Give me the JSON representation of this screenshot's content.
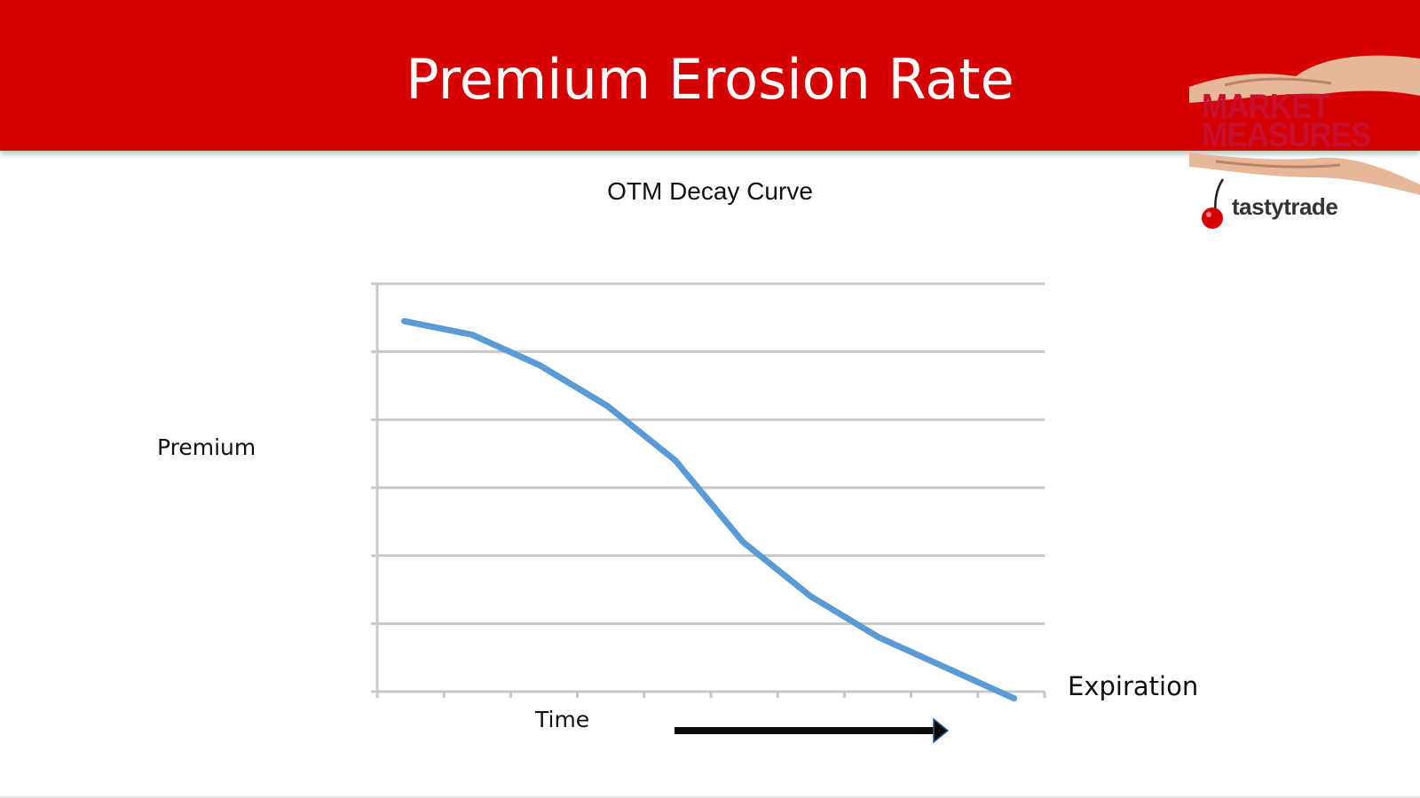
{
  "slide": {
    "title": "Premium Erosion Rate"
  },
  "logo": {
    "brand_line1": "MARKET",
    "brand_line2": "MEASURES",
    "company": "tastytrade",
    "brand_color": "#c8102e",
    "icon": "cherry-icon"
  },
  "colors": {
    "banner": "#d50000",
    "line": "#5b9bd5",
    "grid": "#c8c8c8",
    "arrow": "#0b0b0b"
  },
  "chart_data": {
    "type": "line",
    "title": "OTM Decay Curve",
    "xlabel": "Time",
    "ylabel": "Premium",
    "annotation": "Expiration",
    "grid": true,
    "axis_tick_labels": false,
    "x": [
      1,
      2,
      3,
      4,
      5,
      6,
      7,
      8,
      9,
      10
    ],
    "ylim": [
      0,
      6
    ],
    "series": [
      {
        "values": [
          5.45,
          5.25,
          4.8,
          4.2,
          3.4,
          2.2,
          1.4,
          0.8,
          0.35,
          -0.1
        ]
      }
    ]
  }
}
